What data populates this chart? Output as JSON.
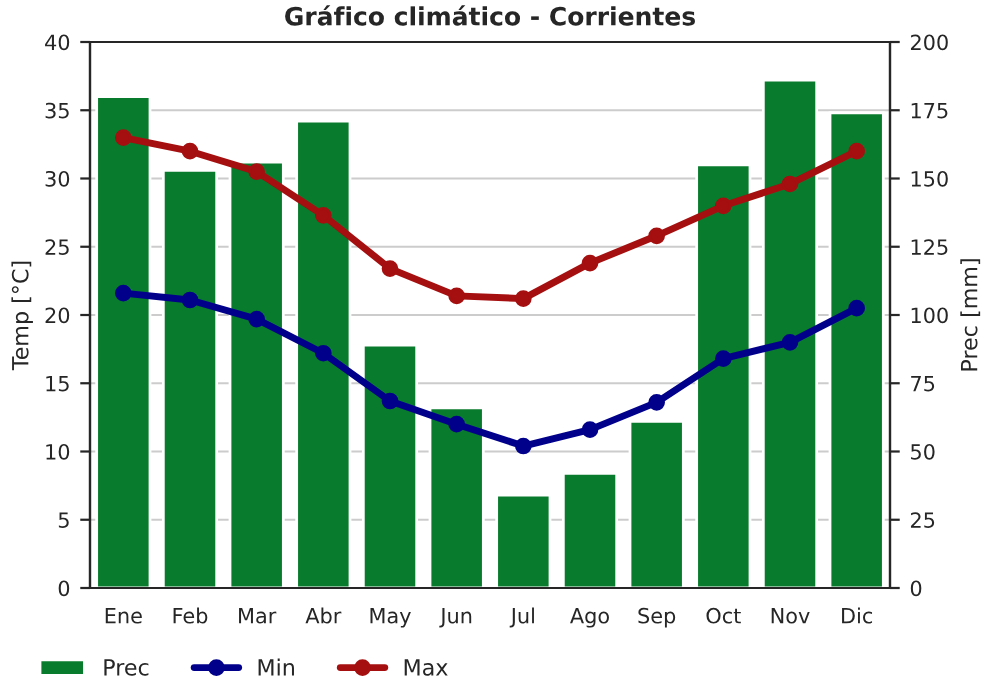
{
  "chart_data": {
    "type": "line",
    "title": "Gráfico climático - Corrientes",
    "ylabel": "Temp [°C]",
    "y2label": "Prec [mm]",
    "categories": [
      "Ene",
      "Feb",
      "Mar",
      "Abr",
      "May",
      "Jun",
      "Jul",
      "Ago",
      "Sep",
      "Oct",
      "Nov",
      "Dic"
    ],
    "series": [
      {
        "name": "Prec",
        "type": "bar",
        "axis": "y2",
        "color": "#097b2d",
        "values": [
          180,
          153,
          156,
          171,
          89,
          66,
          34,
          42,
          61,
          155,
          186,
          174
        ]
      },
      {
        "name": "Min",
        "color": "#00008b",
        "values": [
          21.6,
          21.1,
          19.7,
          17.2,
          13.7,
          12.0,
          10.4,
          11.6,
          13.6,
          16.8,
          18.0,
          20.5
        ]
      },
      {
        "name": "Max",
        "color": "#a50f0f",
        "values": [
          33.0,
          32.0,
          30.5,
          27.3,
          23.4,
          21.4,
          21.2,
          23.8,
          25.8,
          28.0,
          29.6,
          32.0
        ]
      }
    ],
    "ylim": [
      0,
      40
    ],
    "yticks": [
      0,
      5,
      10,
      15,
      20,
      25,
      30,
      35,
      40
    ],
    "y2lim": [
      0,
      200
    ],
    "y2ticks": [
      0,
      25,
      50,
      75,
      100,
      125,
      150,
      175,
      200
    ],
    "grid": "y",
    "legend": "bottom",
    "marker": "circle",
    "line_style": "solid"
  }
}
